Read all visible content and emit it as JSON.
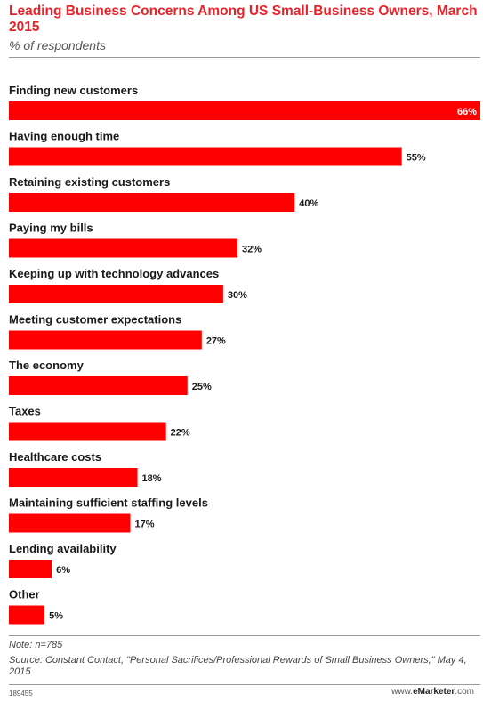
{
  "header": {
    "title": "Leading Business Concerns Among US Small-Business Owners, March 2015",
    "subtitle": "% of respondents"
  },
  "chart_data": {
    "type": "bar",
    "orientation": "horizontal",
    "title": "Leading Business Concerns Among US Small-Business Owners, March 2015",
    "subtitle": "% of respondents",
    "categories": [
      "Finding new customers",
      "Having enough time",
      "Retaining existing customers",
      "Paying my bills",
      "Keeping up with technology advances",
      "Meeting customer expectations",
      "The economy",
      "Taxes",
      "Healthcare costs",
      "Maintaining sufficient staffing levels",
      "Lending availability",
      "Other"
    ],
    "values": [
      66,
      55,
      40,
      32,
      30,
      27,
      25,
      22,
      18,
      17,
      6,
      5
    ],
    "value_labels": [
      "66%",
      "55%",
      "40%",
      "32%",
      "30%",
      "27%",
      "25%",
      "22%",
      "18%",
      "17%",
      "6%",
      "5%"
    ],
    "unit": "%",
    "xlim": [
      0,
      66
    ],
    "bar_color": "#ff0000",
    "grid": false,
    "legend": "none"
  },
  "footer": {
    "note": "Note: n=785",
    "source": "Source: Constant Contact, \"Personal Sacrifices/Professional Rewards of Small Business Owners,\" May 4, 2015",
    "code": "189455",
    "brand_prefix": "www.",
    "brand_name": "eMarketer",
    "brand_suffix": ".com"
  }
}
